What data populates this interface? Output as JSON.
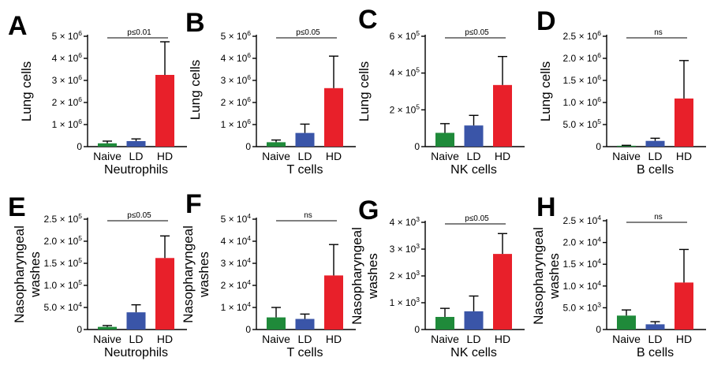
{
  "colors": {
    "Naive": "#1f8a3a",
    "LD": "#3a55a8",
    "HD": "#e8202a"
  },
  "chart_data": [
    {
      "panel": "A",
      "type": "bar",
      "ylabel": [
        "Lung cells"
      ],
      "xlabel": "Neutrophils",
      "categories": [
        "Naive",
        "LD",
        "HD"
      ],
      "values": [
        150000,
        250000,
        3250000
      ],
      "errors": [
        100000,
        100000,
        1500000
      ],
      "ylim": [
        0,
        5000000
      ],
      "yticks": [
        {
          "v": 0,
          "base": "0"
        },
        {
          "v": 1000000,
          "base": "1 × 10",
          "exp": "6"
        },
        {
          "v": 2000000,
          "base": "2 × 10",
          "exp": "6"
        },
        {
          "v": 3000000,
          "base": "3 × 10",
          "exp": "6"
        },
        {
          "v": 4000000,
          "base": "4 × 10",
          "exp": "6"
        },
        {
          "v": 5000000,
          "base": "5 × 10",
          "exp": "6"
        }
      ],
      "sig": "p≤0.01"
    },
    {
      "panel": "B",
      "type": "bar",
      "ylabel": [
        "Lung cells"
      ],
      "xlabel": "T cells",
      "categories": [
        "Naive",
        "LD",
        "HD"
      ],
      "values": [
        200000,
        620000,
        2650000
      ],
      "errors": [
        100000,
        400000,
        1450000
      ],
      "ylim": [
        0,
        5000000
      ],
      "yticks": [
        {
          "v": 0,
          "base": "0"
        },
        {
          "v": 1000000,
          "base": "1 × 10",
          "exp": "6"
        },
        {
          "v": 2000000,
          "base": "2 × 10",
          "exp": "6"
        },
        {
          "v": 3000000,
          "base": "3 × 10",
          "exp": "6"
        },
        {
          "v": 4000000,
          "base": "4 × 10",
          "exp": "6"
        },
        {
          "v": 5000000,
          "base": "5 × 10",
          "exp": "6"
        }
      ],
      "sig": "p≤0.05"
    },
    {
      "panel": "C",
      "type": "bar",
      "ylabel": [
        "Lung cells"
      ],
      "xlabel": "NK cells",
      "categories": [
        "Naive",
        "LD",
        "HD"
      ],
      "values": [
        75000,
        115000,
        335000
      ],
      "errors": [
        50000,
        55000,
        155000
      ],
      "ylim": [
        0,
        600000
      ],
      "yticks": [
        {
          "v": 0,
          "base": "0"
        },
        {
          "v": 200000,
          "base": "2 × 10",
          "exp": "5"
        },
        {
          "v": 400000,
          "base": "4 × 10",
          "exp": "5"
        },
        {
          "v": 600000,
          "base": "6 × 10",
          "exp": "5"
        }
      ],
      "sig": "p≤0.05"
    },
    {
      "panel": "D",
      "type": "bar",
      "ylabel": [
        "Lung cells"
      ],
      "xlabel": "B cells",
      "categories": [
        "Naive",
        "LD",
        "HD"
      ],
      "values": [
        20000,
        130000,
        1090000
      ],
      "errors": [
        10000,
        60000,
        860000
      ],
      "ylim": [
        0,
        2500000
      ],
      "yticks": [
        {
          "v": 0,
          "base": "0"
        },
        {
          "v": 500000,
          "base": "5.0 × 10",
          "exp": "5"
        },
        {
          "v": 1000000,
          "base": "1.0 × 10",
          "exp": "6"
        },
        {
          "v": 1500000,
          "base": "1.5 × 10",
          "exp": "6"
        },
        {
          "v": 2000000,
          "base": "2.0 × 10",
          "exp": "6"
        },
        {
          "v": 2500000,
          "base": "2.5 × 10",
          "exp": "6"
        }
      ],
      "sig": "ns"
    },
    {
      "panel": "E",
      "type": "bar",
      "ylabel": [
        "Nasopharyngeal",
        "washes"
      ],
      "xlabel": "Neutrophils",
      "categories": [
        "Naive",
        "LD",
        "HD"
      ],
      "values": [
        6000,
        39000,
        162000
      ],
      "errors": [
        3000,
        17000,
        50000
      ],
      "ylim": [
        0,
        250000
      ],
      "yticks": [
        {
          "v": 0,
          "base": "0"
        },
        {
          "v": 50000,
          "base": "5.0 × 10",
          "exp": "4"
        },
        {
          "v": 100000,
          "base": "1.0 × 10",
          "exp": "5"
        },
        {
          "v": 150000,
          "base": "1.5 × 10",
          "exp": "5"
        },
        {
          "v": 200000,
          "base": "2.0 × 10",
          "exp": "5"
        },
        {
          "v": 250000,
          "base": "2.5 × 10",
          "exp": "5"
        }
      ],
      "sig": "p≤0.05"
    },
    {
      "panel": "F",
      "type": "bar",
      "ylabel": [
        "Nasopharyngeal",
        "washes"
      ],
      "xlabel": "T cells",
      "categories": [
        "Naive",
        "LD",
        "HD"
      ],
      "values": [
        5500,
        4800,
        24500
      ],
      "errors": [
        4500,
        2200,
        14000
      ],
      "ylim": [
        0,
        50000
      ],
      "yticks": [
        {
          "v": 0,
          "base": "0"
        },
        {
          "v": 10000,
          "base": "1 × 10",
          "exp": "4"
        },
        {
          "v": 20000,
          "base": "2 × 10",
          "exp": "4"
        },
        {
          "v": 30000,
          "base": "3 × 10",
          "exp": "4"
        },
        {
          "v": 40000,
          "base": "4 × 10",
          "exp": "4"
        },
        {
          "v": 50000,
          "base": "5 × 10",
          "exp": "4"
        }
      ],
      "sig": "ns"
    },
    {
      "panel": "G",
      "type": "bar",
      "ylabel": [
        "Nasopharyngeal",
        "washes"
      ],
      "xlabel": "NK cells",
      "categories": [
        "Naive",
        "LD",
        "HD"
      ],
      "values": [
        470,
        680,
        2820
      ],
      "errors": [
        320,
        570,
        760
      ],
      "ylim": [
        0,
        4000
      ],
      "yticks": [
        {
          "v": 0,
          "base": "0"
        },
        {
          "v": 1000,
          "base": "1 × 10",
          "exp": "3"
        },
        {
          "v": 2000,
          "base": "2 × 10",
          "exp": "3"
        },
        {
          "v": 3000,
          "base": "3 × 10",
          "exp": "3"
        },
        {
          "v": 4000,
          "base": "4 × 10",
          "exp": "3"
        }
      ],
      "sig": "p≤0.05"
    },
    {
      "panel": "H",
      "type": "bar",
      "ylabel": [
        "Nasopharyngeal",
        "washes"
      ],
      "xlabel": "B cells",
      "categories": [
        "Naive",
        "LD",
        "HD"
      ],
      "values": [
        3200,
        1200,
        10800
      ],
      "errors": [
        1300,
        600,
        7600
      ],
      "ylim": [
        0,
        25000
      ],
      "yticks": [
        {
          "v": 0,
          "base": "0"
        },
        {
          "v": 5000,
          "base": "5.0 × 10",
          "exp": "3"
        },
        {
          "v": 10000,
          "base": "1.0 × 10",
          "exp": "4"
        },
        {
          "v": 15000,
          "base": "1.5 × 10",
          "exp": "4"
        },
        {
          "v": 20000,
          "base": "2.0 × 10",
          "exp": "4"
        },
        {
          "v": 25000,
          "base": "2.5 × 10",
          "exp": "4"
        }
      ],
      "sig": "ns"
    }
  ]
}
